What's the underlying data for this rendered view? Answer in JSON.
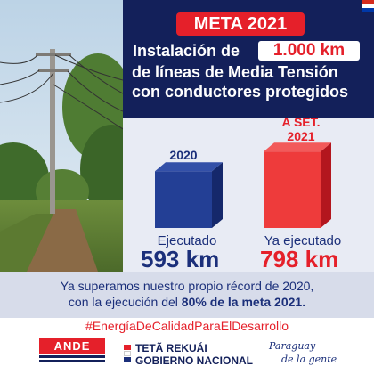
{
  "header": {
    "badge": "META 2021",
    "headline_prefix": "Instalación de",
    "headline_highlight": "1.000 km",
    "headline_line2": "de líneas de Media Tensión",
    "headline_line3": "con conductores protegidos"
  },
  "bars": {
    "left_label": "2020",
    "right_label_line1": "A SET.",
    "right_label_line2": "2021",
    "left_caption": "Ejecutado",
    "left_value": "593 km",
    "right_caption": "Ya ejecutado",
    "right_value": "798 km"
  },
  "chart_data": {
    "type": "bar",
    "categories": [
      "2020",
      "A SET. 2021"
    ],
    "values": [
      593,
      798
    ],
    "colors": [
      "#1b3a8c",
      "#e5202a"
    ]
  },
  "record": {
    "line1": "Ya superamos nuestro propio récord de 2020,",
    "line2_prefix": "con la ejecución del",
    "line2_bold": "80% de la meta 2021."
  },
  "hashtag": "#EnergíaDeCalidadParaElDesarrollo",
  "footer": {
    "ande": "ANDE",
    "gov_line1": "TETÃ REKUÁI",
    "gov_line2": "GOBIERNO NACIONAL",
    "slogan_line1": "Paraguay",
    "slogan_line2": "de la gente"
  },
  "colors": {
    "navy": "#13205a",
    "blue": "#1b2f7a",
    "red": "#e5202a",
    "panel": "#e8ebf4"
  },
  "icons": {
    "flag": "paraguay-flag-icon"
  }
}
